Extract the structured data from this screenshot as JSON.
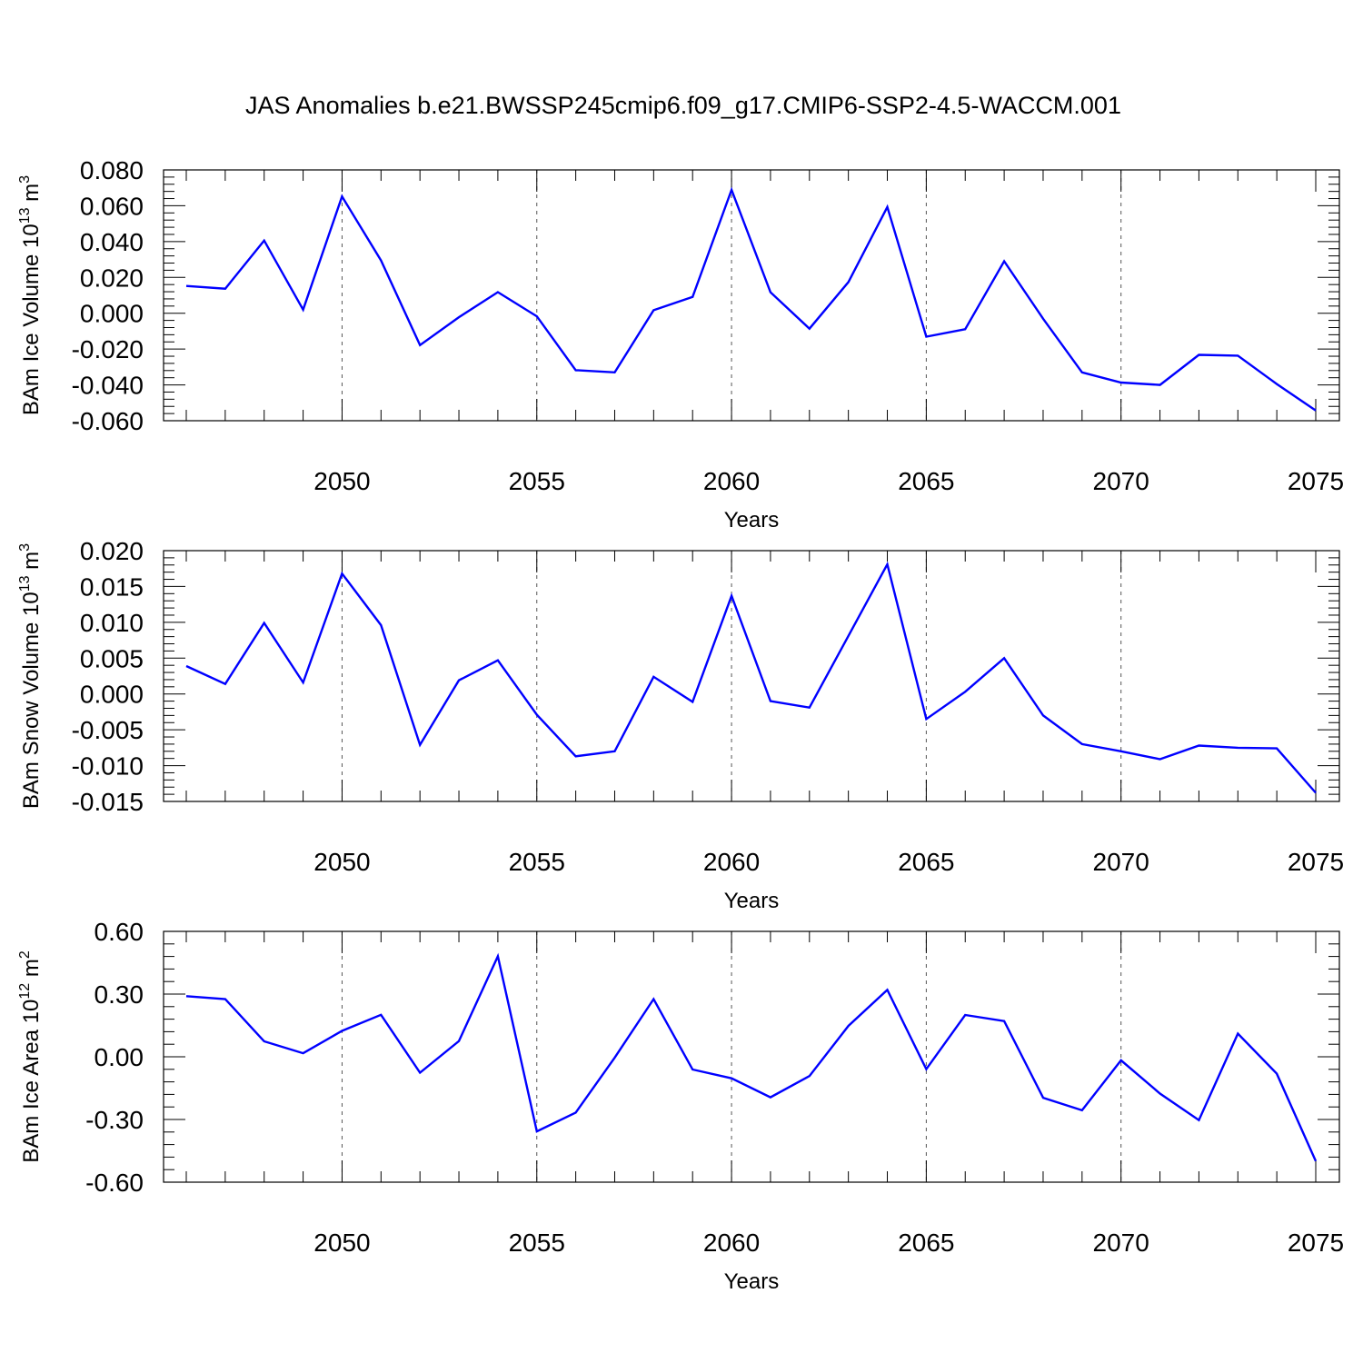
{
  "title": "JAS Anomalies b.e21.BWSSP245cmip6.f09_g17.CMIP6-SSP2-4.5-WACCM.001",
  "colors": {
    "line": "#0000ff",
    "axis": "#000000",
    "grid": "#000000"
  },
  "chart_data": [
    {
      "type": "line",
      "xlabel": "Years",
      "ylabel_parts": [
        "BAm Ice Volume 10",
        "13",
        " m",
        "3"
      ],
      "xlim": [
        2046,
        2075
      ],
      "ylim": [
        -0.06,
        0.08
      ],
      "x_ticks": [
        2050,
        2055,
        2060,
        2065,
        2070,
        2075
      ],
      "y_ticks": [
        "0.080",
        "0.060",
        "0.040",
        "0.020",
        "0.000",
        "-0.020",
        "-0.040",
        "-0.060"
      ],
      "grid": "vertical dashed at major x ticks",
      "x": [
        2046,
        2047,
        2048,
        2049,
        2050,
        2051,
        2052,
        2053,
        2054,
        2055,
        2056,
        2057,
        2058,
        2059,
        2060,
        2061,
        2062,
        2063,
        2064,
        2065,
        2066,
        2067,
        2068,
        2069,
        2070,
        2071,
        2072,
        2073,
        2074,
        2075
      ],
      "values": [
        0.0152,
        0.0137,
        0.0406,
        0.002,
        0.0652,
        0.0295,
        -0.0178,
        -0.0022,
        0.0118,
        -0.0017,
        -0.0318,
        -0.033,
        0.0017,
        0.0091,
        0.0689,
        0.0117,
        -0.0086,
        0.0174,
        0.0593,
        -0.0131,
        -0.0089,
        0.029,
        -0.0031,
        -0.033,
        -0.0387,
        -0.04,
        -0.0232,
        -0.0237,
        -0.0395,
        -0.0543
      ]
    },
    {
      "type": "line",
      "xlabel": "Years",
      "ylabel_parts": [
        "BAm Snow Volume 10",
        "13",
        " m",
        "3"
      ],
      "xlim": [
        2046,
        2075
      ],
      "ylim": [
        -0.015,
        0.02
      ],
      "x_ticks": [
        2050,
        2055,
        2060,
        2065,
        2070,
        2075
      ],
      "y_ticks": [
        "0.020",
        "0.015",
        "0.010",
        "0.005",
        "0.000",
        "-0.005",
        "-0.010",
        "-0.015"
      ],
      "grid": "vertical dashed at major x ticks",
      "x": [
        2046,
        2047,
        2048,
        2049,
        2050,
        2051,
        2052,
        2053,
        2054,
        2055,
        2056,
        2057,
        2058,
        2059,
        2060,
        2061,
        2062,
        2063,
        2064,
        2065,
        2066,
        2067,
        2068,
        2069,
        2070,
        2071,
        2072,
        2073,
        2074,
        2075
      ],
      "values": [
        0.0039,
        0.0014,
        0.0099,
        0.0016,
        0.0168,
        0.0096,
        -0.0071,
        0.0019,
        0.0047,
        -0.0029,
        -0.0087,
        -0.008,
        0.0024,
        -0.0011,
        0.0137,
        -0.001,
        -0.0019,
        0.0081,
        0.0181,
        -0.0035,
        0.0003,
        0.005,
        -0.003,
        -0.007,
        -0.008,
        -0.0091,
        -0.0072,
        -0.0075,
        -0.0076,
        -0.0138
      ]
    },
    {
      "type": "line",
      "xlabel": "Years",
      "ylabel_parts": [
        "BAm Ice Area 10",
        "12",
        " m",
        "2"
      ],
      "xlim": [
        2046,
        2075
      ],
      "ylim": [
        -0.6,
        0.6
      ],
      "x_ticks": [
        2050,
        2055,
        2060,
        2065,
        2070,
        2075
      ],
      "y_ticks": [
        "0.60",
        "0.30",
        "0.00",
        "-0.30",
        "-0.60"
      ],
      "grid": "vertical dashed at major x ticks",
      "x": [
        2046,
        2047,
        2048,
        2049,
        2050,
        2051,
        2052,
        2053,
        2054,
        2055,
        2056,
        2057,
        2058,
        2059,
        2060,
        2061,
        2062,
        2063,
        2064,
        2065,
        2066,
        2067,
        2068,
        2069,
        2070,
        2071,
        2072,
        2073,
        2074,
        2075
      ],
      "values": [
        0.29,
        0.276,
        0.074,
        0.017,
        0.124,
        0.201,
        -0.076,
        0.075,
        0.481,
        -0.357,
        -0.267,
        -0.004,
        0.276,
        -0.061,
        -0.103,
        -0.194,
        -0.092,
        0.148,
        0.32,
        -0.059,
        0.2,
        0.171,
        -0.196,
        -0.256,
        -0.017,
        -0.176,
        -0.303,
        0.111,
        -0.081,
        -0.499
      ]
    }
  ]
}
